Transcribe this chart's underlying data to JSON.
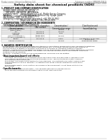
{
  "bg_color": "#ffffff",
  "header_left": "Product name: Lithium Ion Battery Cell",
  "header_right_line1": "Substance number: SMB48B-00810",
  "header_right_line2": "Establishment / Revision: Dec.1.2010",
  "main_title": "Safety data sheet for chemical products (SDS)",
  "s1_title": "1. PRODUCT AND COMPANY IDENTIFICATION",
  "s1_items": [
    "Product name: Lithium Ion Battery Cell",
    "Product code: Cylindrical-type cell",
    "      SNY18650, SNY18650L, SNY18650A",
    "Company name:    Sanyo Electric Co., Ltd., Mobile Energy Company",
    "Address:              2001  Kamikosaka, Sumoto-City, Hyogo, Japan",
    "Telephone number:   +81-799-26-4111",
    "Fax number:  +81-799-26-4120",
    "Emergency telephone number [Weekday]: +81-799-26-3562",
    "                              [Night and holiday]: +81-799-26-4101"
  ],
  "s2_title": "2. COMPOSITION / INFORMATION ON INGREDIENTS",
  "s2_sub1": "Substance or preparation: Preparation",
  "s2_sub2": "Information about the chemical nature of product",
  "tbl_headers": [
    "Chemical name /\nSeveral names",
    "CAS number",
    "Concentration /\nConcentration range",
    "Classification and\nhazard labeling"
  ],
  "tbl_rows": [
    [
      "Lithium cobalt oxide\n(LiMnCoNiO2)",
      "-",
      "30-60%",
      "-"
    ],
    [
      "Iron",
      "7439-89-6",
      "15-30%",
      "-"
    ],
    [
      "Aluminum",
      "7429-90-5",
      "2-5%",
      "-"
    ],
    [
      "Graphite\n(Metal in graphite-1)\n(Al-Mo in graphite-1)",
      "17439-49-5\n17439-44-0",
      "10-20%",
      "-"
    ],
    [
      "Copper",
      "7440-50-8",
      "0-15%",
      "Sensitization of the skin\ngroup No.2"
    ],
    [
      "Organic electrolyte",
      "-",
      "10-20%",
      "Inflammable liquid"
    ]
  ],
  "s3_title": "3. HAZARDS IDENTIFICATION",
  "s3_p1": "For the battery cell, chemical materials are stored in a hermetically sealed metal case, designed to withstand\ntemperatures and pressures generated during normal use. As a result, during normal use, there is no\nphysical danger of ignition or explosion and there is no danger of hazardous materials leakage.",
  "s3_p2": "However, if exposed to a fire added mechanical shocks, decomposed, ambient electric without any measure,\nthe gas vented cannot be operated. The battery cell case will be breached at fire-extreme, hazardous\nmaterials may be released.",
  "s3_p3": "Moreover, if heated strongly by the surrounding fire, some gas may be emitted.",
  "s3_bullet1": "Most important hazard and effects:",
  "s3_human_title": "Human health effects:",
  "s3_human": [
    "Inhalation: The release of the electrolyte has an anesthesia action and stimulates in respiratory tract.",
    "Skin contact: The release of the electrolyte stimulates a skin. The electrolyte skin contact causes a\nsore and stimulation on the skin.",
    "Eye contact: The release of the electrolyte stimulates eyes. The electrolyte eye contact causes a sore\nand stimulation on the eye. Especially, a substance that causes a strong inflammation of the eye is\ncontained.",
    "Environmental effects: Since a battery cell remains in the environment, do not throw out it into the\nenvironment."
  ],
  "s3_bullet2": "Specific hazards:",
  "s3_specific": [
    "If the electrolyte contacts with water, it will generate detrimental hydrogen fluoride.",
    "Since the said electrolyte is inflammatory liquid, do not long close to fire."
  ],
  "line_color": "#aaaaaa",
  "text_color": "#111111",
  "header_text_color": "#666666",
  "title_color": "#000000"
}
